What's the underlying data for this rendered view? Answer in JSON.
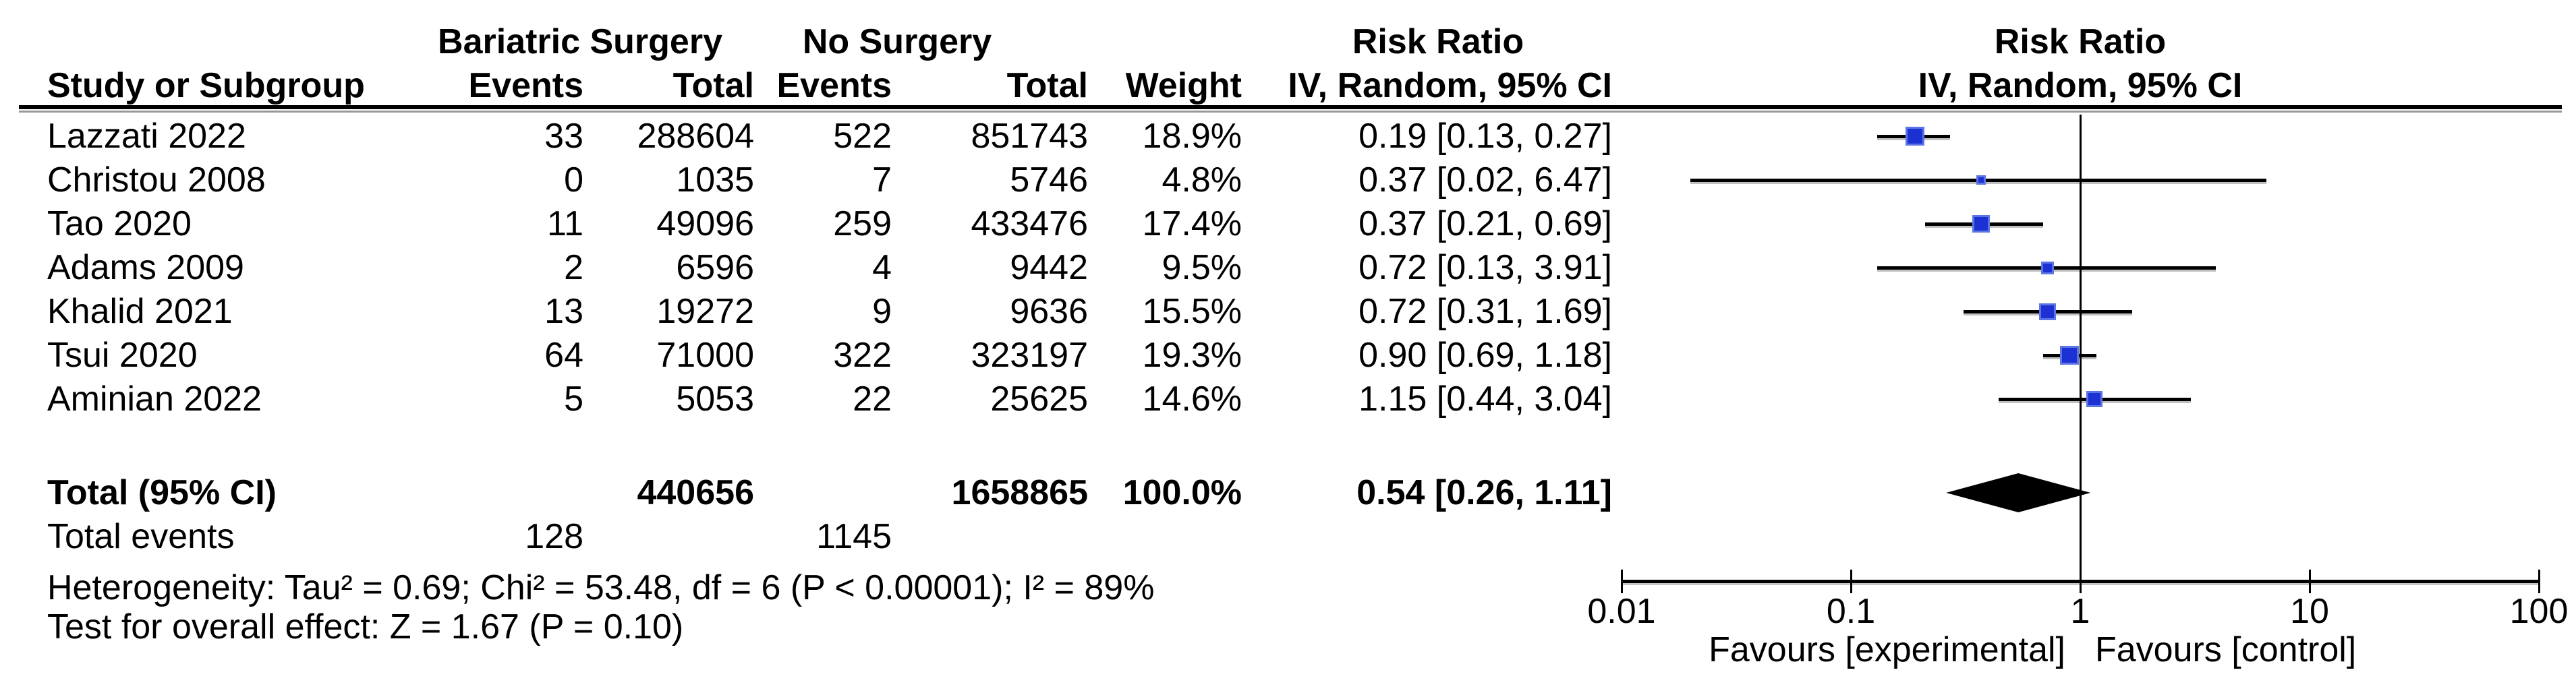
{
  "ui": {
    "group1": "Bariatric Surgery",
    "group2": "No Surgery",
    "risk_ratio": "Risk Ratio",
    "method": "IV, Random, 95% CI",
    "study_col": "Study or Subgroup",
    "events_col": "Events",
    "total_col": "Total",
    "weight_col": "Weight",
    "total_row": {
      "label": "Total (95% CI)",
      "total1": "440656",
      "total2": "1658865",
      "weight": "100.0%",
      "ci": "0.54 [0.26, 1.11]"
    },
    "total_events": {
      "label": "Total events",
      "events1": "128",
      "events2": "1145"
    },
    "footnotes": {
      "heterogeneity": "Heterogeneity: Tau² = 0.69; Chi² = 53.48, df = 6 (P < 0.00001); I² = 89%",
      "overall": "Test for overall effect: Z = 1.67 (P = 0.10)"
    },
    "axis": {
      "tick_labels": [
        "0.01",
        "0.1",
        "1",
        "10",
        "100"
      ],
      "favours_left": "Favours [experimental]",
      "favours_right": "Favours [control]"
    }
  },
  "colors": {
    "square_fill": "#1b31d4",
    "square_border": "#5d74e4",
    "line": "#000000",
    "diamond": "#000000"
  },
  "chart_data": {
    "type": "forest",
    "effect_measure": "Risk Ratio",
    "model": "IV, Random, 95% CI",
    "x_scale": "log10",
    "x_ticks": [
      0.01,
      0.1,
      1,
      10,
      100
    ],
    "x_range": [
      0.01,
      100
    ],
    "null_line": 1,
    "group_labels": [
      "Bariatric Surgery",
      "No Surgery"
    ],
    "xlabel_left": "Favours [experimental]",
    "xlabel_right": "Favours [control]",
    "studies": [
      {
        "name": "Lazzati 2022",
        "events_exp": 33,
        "total_exp": 288604,
        "events_ctrl": 522,
        "total_ctrl": 851743,
        "weight_pct": 18.9,
        "rr": 0.19,
        "ci_low": 0.13,
        "ci_high": 0.27
      },
      {
        "name": "Christou 2008",
        "events_exp": 0,
        "total_exp": 1035,
        "events_ctrl": 7,
        "total_ctrl": 5746,
        "weight_pct": 4.8,
        "rr": 0.37,
        "ci_low": 0.02,
        "ci_high": 6.47
      },
      {
        "name": "Tao 2020",
        "events_exp": 11,
        "total_exp": 49096,
        "events_ctrl": 259,
        "total_ctrl": 433476,
        "weight_pct": 17.4,
        "rr": 0.37,
        "ci_low": 0.21,
        "ci_high": 0.69
      },
      {
        "name": "Adams 2009",
        "events_exp": 2,
        "total_exp": 6596,
        "events_ctrl": 4,
        "total_ctrl": 9442,
        "weight_pct": 9.5,
        "rr": 0.72,
        "ci_low": 0.13,
        "ci_high": 3.91
      },
      {
        "name": "Khalid 2021",
        "events_exp": 13,
        "total_exp": 19272,
        "events_ctrl": 9,
        "total_ctrl": 9636,
        "weight_pct": 15.5,
        "rr": 0.72,
        "ci_low": 0.31,
        "ci_high": 1.69
      },
      {
        "name": "Tsui 2020",
        "events_exp": 64,
        "total_exp": 71000,
        "events_ctrl": 322,
        "total_ctrl": 323197,
        "weight_pct": 19.3,
        "rr": 0.9,
        "ci_low": 0.69,
        "ci_high": 1.18
      },
      {
        "name": "Aminian 2022",
        "events_exp": 5,
        "total_exp": 5053,
        "events_ctrl": 22,
        "total_ctrl": 25625,
        "weight_pct": 14.6,
        "rr": 1.15,
        "ci_low": 0.44,
        "ci_high": 3.04
      }
    ],
    "total": {
      "label": "Total (95% CI)",
      "total_exp": 440656,
      "total_ctrl": 1658865,
      "weight_pct": 100.0,
      "rr": 0.54,
      "ci_low": 0.26,
      "ci_high": 1.11,
      "events_exp": 128,
      "events_ctrl": 1145
    },
    "heterogeneity": {
      "tau2": 0.69,
      "chi2": 53.48,
      "df": 6,
      "p": "< 0.00001",
      "i2_pct": 89
    },
    "overall_effect": {
      "z": 1.67,
      "p": 0.1
    }
  }
}
